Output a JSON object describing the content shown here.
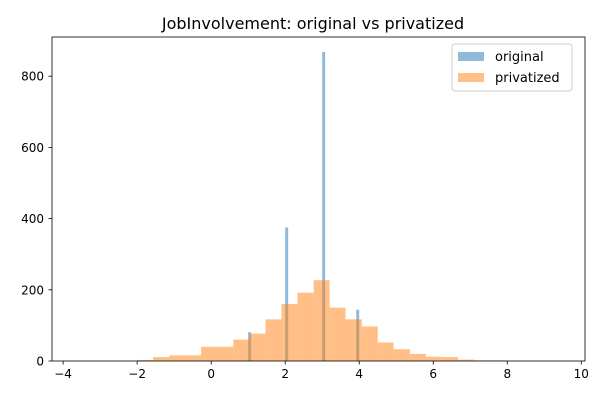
{
  "chart_data": {
    "type": "histogram",
    "title": "JobInvolvement: original vs privatized",
    "xlabel": "",
    "ylabel": "",
    "xlim": [
      -4.3,
      10.1
    ],
    "ylim": [
      0,
      910
    ],
    "x_ticks": [
      -4,
      -2,
      0,
      2,
      4,
      6,
      8,
      10
    ],
    "y_ticks": [
      0,
      200,
      400,
      600,
      800
    ],
    "x_tick_labels": [
      "−4",
      "−2",
      "0",
      "2",
      "4",
      "6",
      "8",
      "10"
    ],
    "y_tick_labels": [
      "0",
      "200",
      "400",
      "600",
      "800"
    ],
    "legend_position": "top-right",
    "series": [
      {
        "name": "original",
        "color": "#1f77b4",
        "opacity": 0.5,
        "bins": [
          {
            "x0": 1.0,
            "x1": 1.08,
            "count": 81
          },
          {
            "x0": 2.0,
            "x1": 2.08,
            "count": 375
          },
          {
            "x0": 3.0,
            "x1": 3.08,
            "count": 868
          },
          {
            "x0": 3.92,
            "x1": 4.0,
            "count": 144
          }
        ]
      },
      {
        "name": "privatized",
        "color": "#ff7f0e",
        "opacity": 0.5,
        "bins": [
          {
            "x0": -2.0,
            "x1": -1.57,
            "count": 3
          },
          {
            "x0": -1.57,
            "x1": -1.13,
            "count": 11
          },
          {
            "x0": -1.13,
            "x1": -0.7,
            "count": 16
          },
          {
            "x0": -0.7,
            "x1": -0.27,
            "count": 16
          },
          {
            "x0": -0.27,
            "x1": 0.17,
            "count": 40
          },
          {
            "x0": 0.17,
            "x1": 0.6,
            "count": 40
          },
          {
            "x0": 0.6,
            "x1": 1.03,
            "count": 60
          },
          {
            "x0": 1.03,
            "x1": 1.47,
            "count": 77
          },
          {
            "x0": 1.47,
            "x1": 1.9,
            "count": 117
          },
          {
            "x0": 1.9,
            "x1": 2.33,
            "count": 160
          },
          {
            "x0": 2.33,
            "x1": 2.77,
            "count": 192
          },
          {
            "x0": 2.77,
            "x1": 3.2,
            "count": 227
          },
          {
            "x0": 3.2,
            "x1": 3.63,
            "count": 150
          },
          {
            "x0": 3.63,
            "x1": 4.07,
            "count": 117
          },
          {
            "x0": 4.07,
            "x1": 4.5,
            "count": 97
          },
          {
            "x0": 4.5,
            "x1": 4.93,
            "count": 52
          },
          {
            "x0": 4.93,
            "x1": 5.37,
            "count": 33
          },
          {
            "x0": 5.37,
            "x1": 5.8,
            "count": 20
          },
          {
            "x0": 5.8,
            "x1": 6.23,
            "count": 12
          },
          {
            "x0": 6.23,
            "x1": 6.67,
            "count": 11
          },
          {
            "x0": 6.67,
            "x1": 7.1,
            "count": 4
          },
          {
            "x0": 7.1,
            "x1": 7.53,
            "count": 2
          },
          {
            "x0": 7.53,
            "x1": 7.97,
            "count": 2
          }
        ]
      }
    ]
  }
}
